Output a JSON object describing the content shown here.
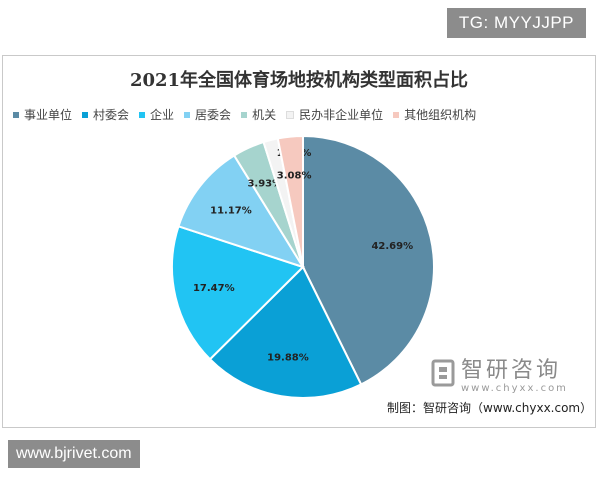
{
  "watermarks": {
    "top_right": "TG: MYYJJPP",
    "bottom_left": "www.bjrivet.com"
  },
  "chart_data": {
    "type": "pie",
    "title": "2021年全国体育场地按机构类型面积占比",
    "legend_position": "top",
    "slices": [
      {
        "label": "事业单位",
        "value": 42.69,
        "display": "42.69%",
        "color": "#5b8ba5"
      },
      {
        "label": "村委会",
        "value": 19.88,
        "display": "19.88%",
        "color": "#0aa0d6"
      },
      {
        "label": "企业",
        "value": 17.47,
        "display": "17.47%",
        "color": "#21c4f3"
      },
      {
        "label": "居委会",
        "value": 11.17,
        "display": "11.17%",
        "color": "#82d1f3"
      },
      {
        "label": "机关",
        "value": 3.93,
        "display": "3.93%",
        "color": "#a6d4ce"
      },
      {
        "label": "民办非企业单位",
        "value": 1.79,
        "display": "1.79%",
        "color": "#f3f3f3"
      },
      {
        "label": "其他组织机构",
        "value": 3.08,
        "display": "3.08%",
        "color": "#f6c9bf"
      }
    ]
  },
  "source": {
    "text": "制图：智研咨询（www.chyxx.com）"
  },
  "logo": {
    "name": "智研咨询",
    "url": "www.chyxx.com"
  }
}
